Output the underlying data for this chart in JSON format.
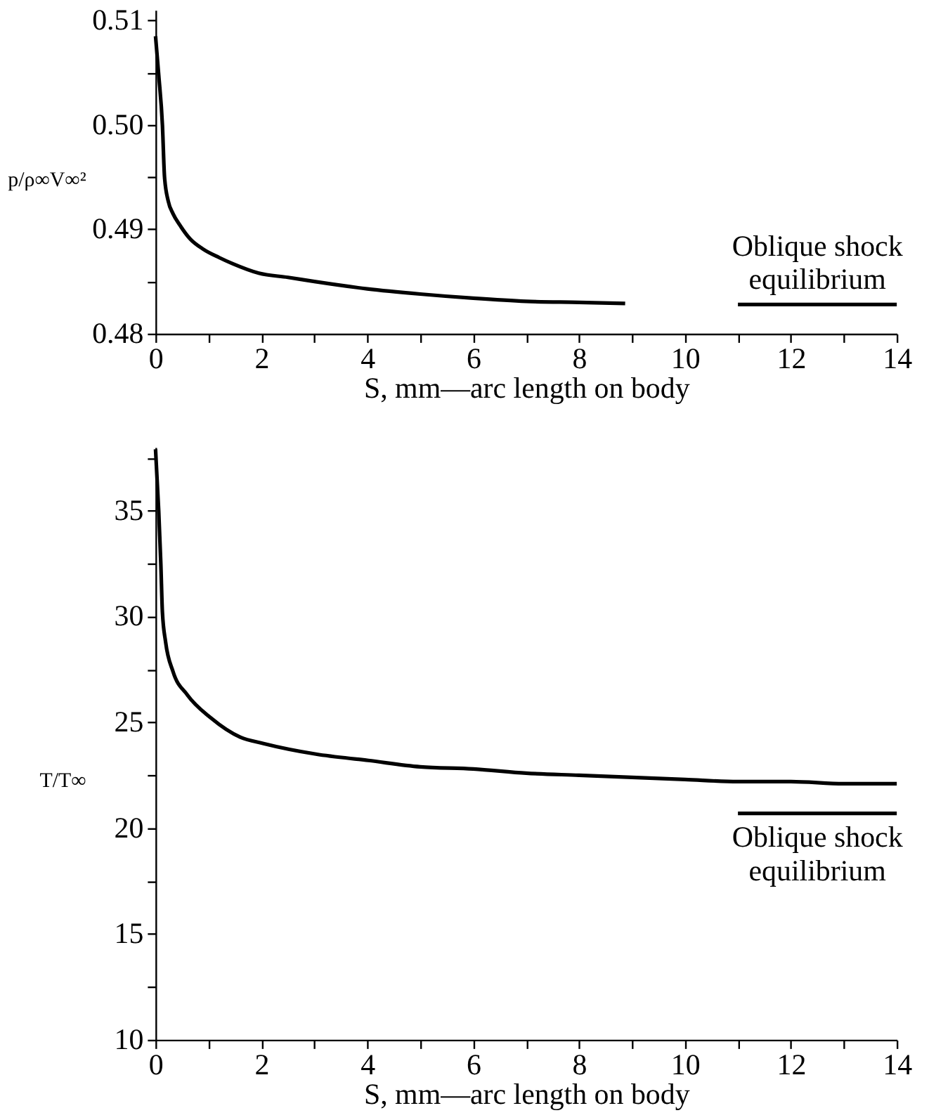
{
  "chart_data": [
    {
      "type": "line",
      "xlabel": "S, mm—arc length on body",
      "ylabel": "p/ρ∞V∞²",
      "xlim": [
        0,
        14
      ],
      "xticks": [
        0,
        {
          "value": 1,
          "label": null
        },
        2,
        {
          "value": 3,
          "label": null
        },
        4,
        {
          "value": 5,
          "label": null
        },
        6,
        {
          "value": 7,
          "label": null
        },
        8,
        {
          "value": 9,
          "label": null
        },
        10,
        {
          "value": 11,
          "label": null
        },
        12,
        {
          "value": 13,
          "label": null
        },
        14
      ],
      "ylim": [
        0.48,
        0.511
      ],
      "yticks": [
        0.48,
        {
          "value": 0.485,
          "label": null
        },
        0.49,
        {
          "value": 0.495,
          "label": null
        },
        {
          "value": 0.5,
          "label": "0.50"
        },
        {
          "value": 0.505,
          "label": null
        },
        0.51
      ],
      "series": [
        {
          "color": "#000000",
          "x": [
            0,
            0.06,
            0.13,
            0.17,
            0.24,
            0.33,
            0.46,
            0.65,
            0.9,
            1.2,
            1.46,
            1.95,
            2.5,
            3,
            4,
            5,
            6,
            7,
            8,
            8.87
          ],
          "values": [
            0.5085,
            0.5048,
            0.5,
            0.495,
            0.4927,
            0.4915,
            0.4904,
            0.4891,
            0.4881,
            0.4873,
            0.4867,
            0.4858,
            0.4854,
            0.485,
            0.4843,
            0.4838,
            0.4834,
            0.4831,
            0.483,
            0.4829
          ]
        },
        {
          "name": "Oblique shock\nequilibrium",
          "color": "#000000",
          "x": [
            11,
            14
          ],
          "values": [
            0.4828,
            0.4828
          ]
        }
      ]
    },
    {
      "type": "line",
      "xlabel": "S, mm—arc length on body",
      "ylabel": "T/T∞",
      "xlim": [
        0,
        14
      ],
      "xticks": [
        0,
        {
          "value": 1,
          "label": null
        },
        2,
        {
          "value": 3,
          "label": null
        },
        4,
        {
          "value": 5,
          "label": null
        },
        6,
        {
          "value": 7,
          "label": null
        },
        8,
        {
          "value": 9,
          "label": null
        },
        10,
        {
          "value": 11,
          "label": null
        },
        12,
        {
          "value": 13,
          "label": null
        },
        14
      ],
      "ylim": [
        10,
        38
      ],
      "yticks": [
        10,
        {
          "value": 12.5,
          "label": null
        },
        15,
        {
          "value": 17.5,
          "label": null
        },
        20,
        {
          "value": 22.5,
          "label": null
        },
        25,
        {
          "value": 27.5,
          "label": null
        },
        30,
        {
          "value": 32.5,
          "label": null
        },
        35,
        {
          "value": 37.5,
          "label": null
        }
      ],
      "series": [
        {
          "color": "#000000",
          "x": [
            0,
            0.06,
            0.1,
            0.13,
            0.19,
            0.33,
            0.6,
            1.05,
            1.6,
            2.04,
            3.03,
            4.02,
            5,
            6,
            7,
            8,
            9,
            10,
            11,
            12,
            13,
            14
          ],
          "values": [
            37.9,
            35.0,
            32.5,
            30.2,
            28.8,
            27.4,
            26.3,
            25.2,
            24.3,
            24.0,
            23.5,
            23.2,
            22.9,
            22.8,
            22.6,
            22.5,
            22.4,
            22.3,
            22.2,
            22.2,
            22.1,
            22.1
          ]
        },
        {
          "name": "Oblique shock\nequilibrium",
          "color": "#000000",
          "x": [
            11,
            14
          ],
          "values": [
            20.7,
            20.7
          ]
        }
      ]
    }
  ]
}
